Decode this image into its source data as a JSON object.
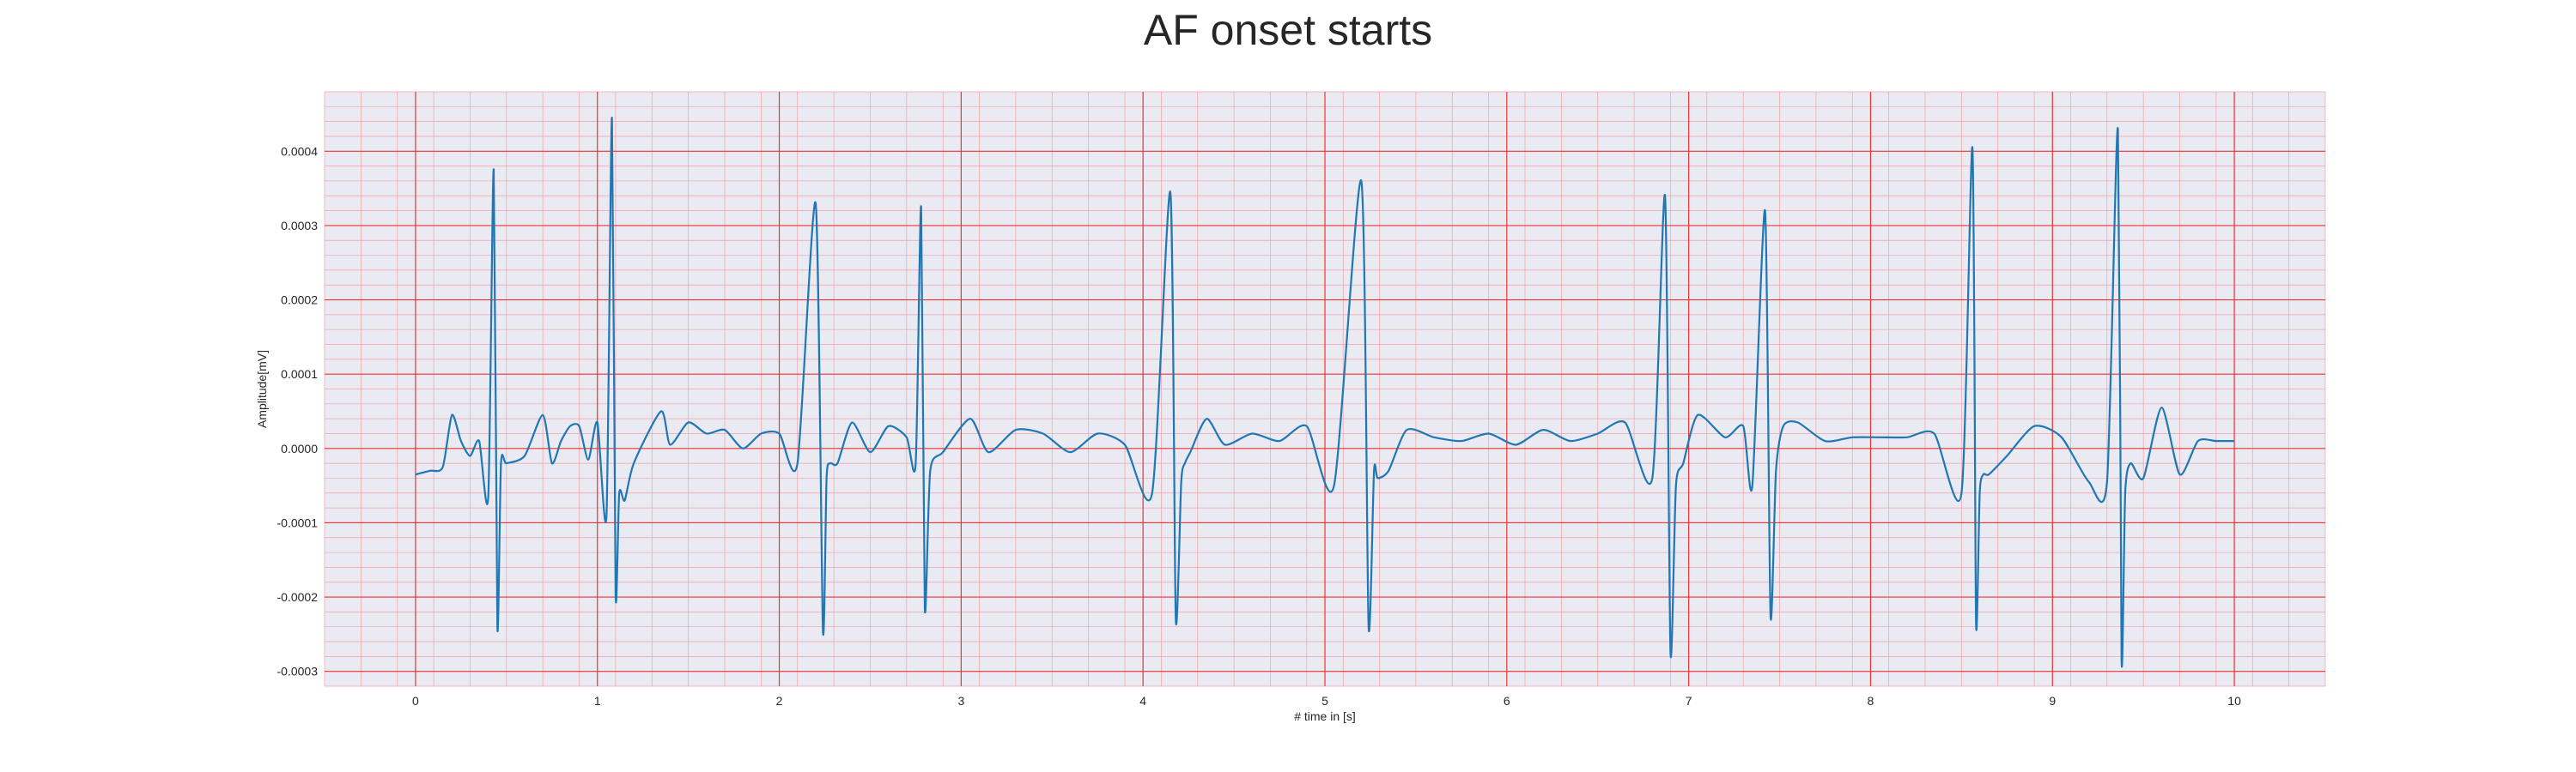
{
  "chart_data": {
    "type": "line",
    "title": "AF onset starts",
    "xlabel": "# time in [s]",
    "ylabel": "Amplitude[mV]",
    "xlim": [
      -0.5,
      10.5
    ],
    "ylim": [
      -0.00032,
      0.00048
    ],
    "x_ticks": [
      0,
      1,
      2,
      3,
      4,
      5,
      6,
      7,
      8,
      9,
      10
    ],
    "x_tick_labels": [
      "0",
      "1",
      "2",
      "3",
      "4",
      "5",
      "6",
      "7",
      "8",
      "9",
      "10"
    ],
    "y_ticks": [
      -0.0003,
      -0.0002,
      -0.0001,
      0.0,
      0.0001,
      0.0002,
      0.0003,
      0.0004
    ],
    "y_tick_labels": [
      "-0.0003",
      "-0.0002",
      "-0.0001",
      "0.0000",
      "0.0001",
      "0.0002",
      "0.0003",
      "0.0004"
    ],
    "grid": true,
    "colors": {
      "line": "#1f77b4",
      "plot_background": "#eaeaf2",
      "major_grid": "#ee3333",
      "minor_grid": "#f4a0a8"
    },
    "series": [
      {
        "x": [
          0.0,
          0.08,
          0.15,
          0.2,
          0.25,
          0.3,
          0.35,
          0.4,
          0.43,
          0.45,
          0.47,
          0.5,
          0.6,
          0.7,
          0.75,
          0.8,
          0.85,
          0.9,
          0.95,
          1.0,
          1.05,
          1.08,
          1.1,
          1.12,
          1.15,
          1.2,
          1.35,
          1.4,
          1.5,
          1.6,
          1.7,
          1.8,
          1.9,
          2.0,
          2.1,
          2.2,
          2.24,
          2.26,
          2.28,
          2.32,
          2.4,
          2.5,
          2.6,
          2.7,
          2.75,
          2.78,
          2.8,
          2.83,
          2.9,
          3.05,
          3.15,
          3.3,
          3.45,
          3.6,
          3.75,
          3.9,
          4.05,
          4.15,
          4.18,
          4.21,
          4.23,
          4.26,
          4.35,
          4.45,
          4.6,
          4.75,
          4.9,
          5.05,
          5.2,
          5.24,
          5.27,
          5.29,
          5.35,
          5.45,
          5.6,
          5.75,
          5.9,
          6.05,
          6.2,
          6.35,
          6.5,
          6.65,
          6.8,
          6.87,
          6.9,
          6.93,
          6.97,
          7.05,
          7.2,
          7.3,
          7.35,
          7.42,
          7.45,
          7.48,
          7.52,
          7.6,
          7.75,
          7.9,
          8.05,
          8.2,
          8.35,
          8.5,
          8.56,
          8.58,
          8.6,
          8.62,
          8.65,
          8.75,
          8.9,
          9.05,
          9.2,
          9.3,
          9.36,
          9.38,
          9.4,
          9.43,
          9.5,
          9.6,
          9.7,
          9.8,
          9.9,
          10.0
        ],
        "y": [
          -3.5e-05,
          -3e-05,
          -2.5e-05,
          4.5e-05,
          1e-05,
          -1e-05,
          1e-05,
          -6.5e-05,
          0.000375,
          -0.00024,
          -2e-05,
          -2e-05,
          -1e-05,
          4.5e-05,
          -2e-05,
          1e-05,
          3e-05,
          3e-05,
          -1.5e-05,
          3.5e-05,
          -9e-05,
          0.000445,
          -0.000195,
          -6e-05,
          -7e-05,
          -2e-05,
          5e-05,
          5e-06,
          3.5e-05,
          2e-05,
          2.5e-05,
          0.0,
          2e-05,
          2e-05,
          -2e-05,
          0.00033,
          -0.000245,
          -4e-05,
          -2e-05,
          -2e-05,
          3.5e-05,
          -5e-06,
          3e-05,
          1.5e-05,
          -2e-05,
          0.000325,
          -0.000215,
          -3e-05,
          -5e-06,
          4e-05,
          -5e-06,
          2.5e-05,
          2e-05,
          -5e-06,
          2e-05,
          5e-06,
          -6e-05,
          0.000345,
          -0.00023,
          -4.5e-05,
          -2e-05,
          -5e-06,
          4e-05,
          5e-06,
          2e-05,
          1e-05,
          3e-05,
          -5e-05,
          0.00036,
          -0.00024,
          -3e-05,
          -4e-05,
          -3e-05,
          2.5e-05,
          1.5e-05,
          1e-05,
          2e-05,
          5e-06,
          2.5e-05,
          1e-05,
          2e-05,
          3.5e-05,
          -4e-05,
          0.00034,
          -0.000275,
          -5e-05,
          -2e-05,
          4.5e-05,
          1.5e-05,
          3e-05,
          -5e-05,
          0.00032,
          -0.000225,
          -3e-05,
          3e-05,
          3.5e-05,
          1e-05,
          1.5e-05,
          1.5e-05,
          1.5e-05,
          2e-05,
          -6e-05,
          0.000405,
          -0.000235,
          -6e-05,
          -3.5e-05,
          -3.5e-05,
          -1e-05,
          3e-05,
          1.5e-05,
          -4.5e-05,
          -4.5e-05,
          0.00043,
          -0.000285,
          -6e-05,
          -2e-05,
          -4e-05,
          5.5e-05,
          -3.5e-05,
          1e-05,
          1e-05,
          1e-05
        ]
      }
    ]
  }
}
